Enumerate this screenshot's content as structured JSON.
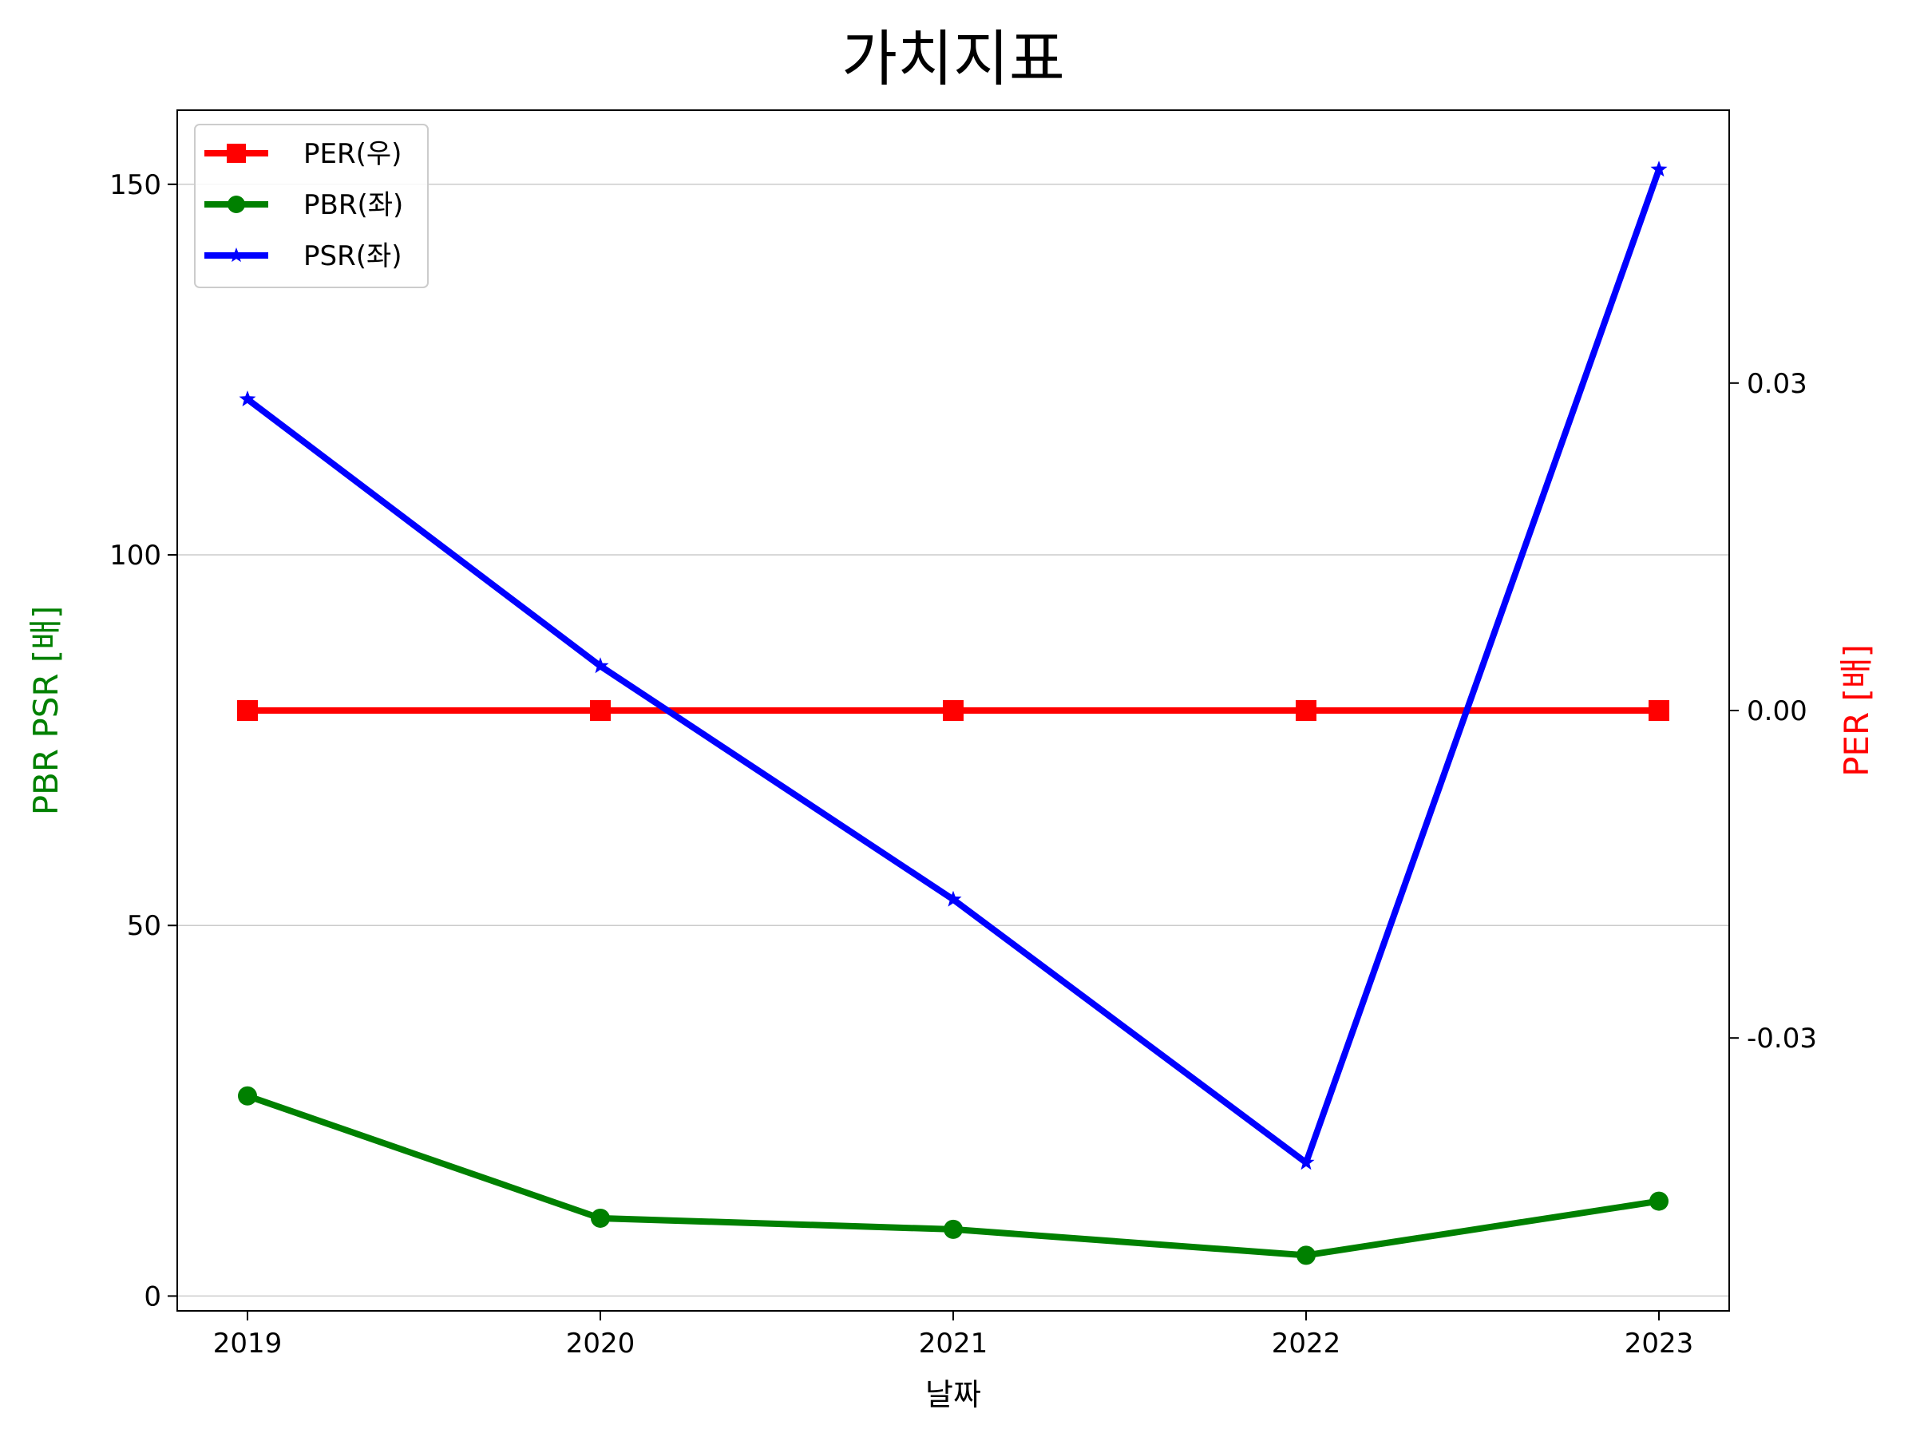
{
  "chart_data": {
    "type": "line",
    "title": "가치지표",
    "xlabel": "날짜",
    "ylabel_left": "PBR PSR [배]",
    "ylabel_right": "PER [배]",
    "categories": [
      "2019",
      "2020",
      "2021",
      "2022",
      "2023"
    ],
    "left_axis": {
      "ylim": [
        -2,
        160
      ],
      "ticks": [
        0,
        50,
        100,
        150
      ],
      "tick_labels": [
        "0",
        "50",
        "100",
        "150"
      ],
      "label_color": "#008000"
    },
    "right_axis": {
      "ylim": [
        -0.055,
        0.055
      ],
      "ticks": [
        -0.03,
        0.0,
        0.03
      ],
      "tick_labels": [
        "-0.03",
        "0.00",
        "0.03"
      ],
      "label_color": "#ff0000"
    },
    "series": [
      {
        "name": "PER(우)",
        "axis": "right",
        "color": "#ff0000",
        "marker": "square",
        "values": [
          0,
          0,
          0,
          0,
          0
        ]
      },
      {
        "name": "PBR(좌)",
        "axis": "left",
        "color": "#008000",
        "marker": "circle",
        "values": [
          27,
          10.5,
          9,
          5.5,
          12.8
        ]
      },
      {
        "name": "PSR(좌)",
        "axis": "left",
        "color": "#0000ff",
        "marker": "star",
        "values": [
          121,
          85,
          53.5,
          18,
          152
        ]
      }
    ],
    "grid": "horizontal-left",
    "legend_position": "upper-left"
  }
}
